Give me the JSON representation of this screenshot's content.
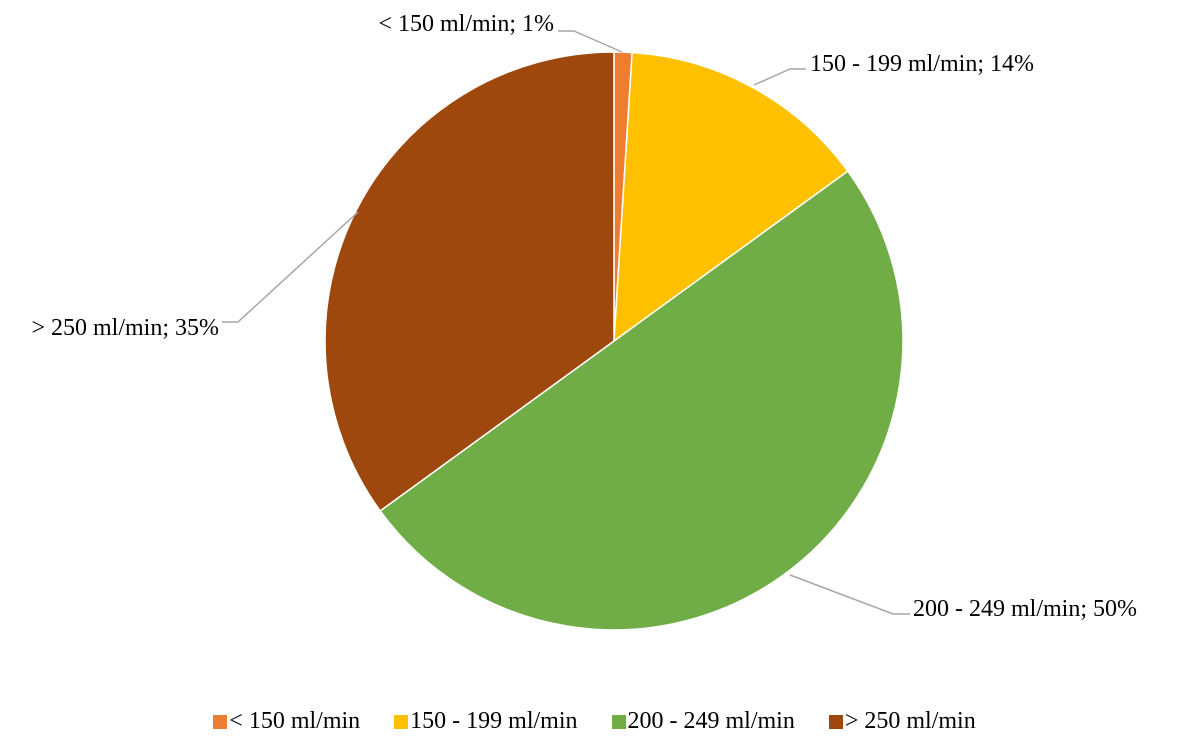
{
  "chart_data": {
    "type": "pie",
    "categories": [
      "< 150 ml/min",
      "150 - 199 ml/min",
      "200 - 249 ml/min",
      "> 250 ml/min"
    ],
    "values": [
      1,
      14,
      50,
      35
    ],
    "data_labels": [
      "< 150 ml/min; 1%",
      "150 - 199 ml/min; 14%",
      "200 - 249 ml/min; 50%",
      "> 250 ml/min; 35%"
    ],
    "colors": [
      "#ED7D31",
      "#FFC000",
      "#70AD47",
      "#9E480E"
    ],
    "legend": {
      "position": "bottom",
      "entries": [
        "< 150 ml/min",
        "150 - 199 ml/min",
        "200 - 249 ml/min",
        "> 250 ml/min"
      ]
    }
  }
}
